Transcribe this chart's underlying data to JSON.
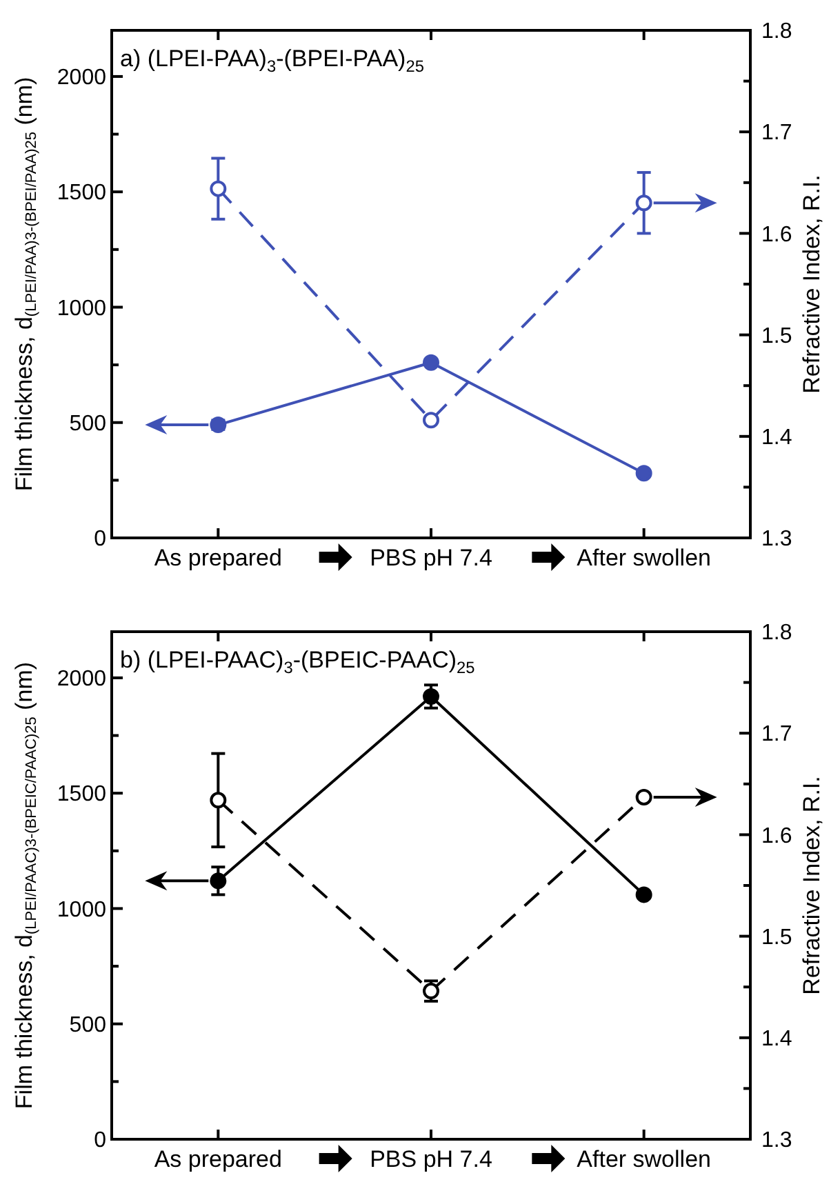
{
  "chart_data": [
    {
      "type": "line",
      "title": "a) (LPEI-PAA)$_{3}$-(BPEI-PAA)$_{25}$",
      "ylabel": "Film thickness, d$_{(LPEI/PAA)3-(BPEI/PAA)25}$ (nm)",
      "y2label": "Refractive Index, R.I.",
      "categories": [
        "As prepared",
        "PBS pH 7.4",
        "After swollen"
      ],
      "series": [
        {
          "color": "#3f51b5",
          "values": [
            490,
            760,
            280
          ],
          "errors": [
            20,
            null,
            null
          ],
          "line_style": "solid"
        },
        {
          "color": "#3f51b5",
          "values": [
            1.644,
            1.416,
            1.63
          ],
          "errors": [
            0.03,
            null,
            0.03
          ],
          "line_style": "dashed",
          "axis": "y2"
        }
      ],
      "ylim": [
        0,
        2200
      ],
      "yticks": [
        0,
        {
          "value": 250,
          "label": null
        },
        500,
        {
          "value": 750,
          "label": null
        },
        1000,
        {
          "value": 1250,
          "label": null
        },
        1500,
        {
          "value": 1750,
          "label": null
        },
        2000
      ],
      "y2lim": [
        1.3,
        1.8
      ],
      "y2ticks": [
        1.3,
        {
          "value": 1.35,
          "label": null
        },
        1.4,
        {
          "value": 1.45,
          "label": null
        },
        1.5,
        {
          "value": 1.55,
          "label": null
        },
        1.6,
        {
          "value": 1.65,
          "label": null
        },
        1.7,
        {
          "value": 1.75,
          "label": null
        },
        1.8
      ],
      "marker": "circle",
      "grid": false
    },
    {
      "type": "line",
      "title": "b) (LPEI-PAAC)$_{3}$-(BPEIC-PAAC)$_{25}$",
      "ylabel": "Film thickness, d$_{(LPEI/PAAC)3-(BPEIC/PAAC)25}$ (nm)",
      "y2label": "Refractive Index, R.I.",
      "categories": [
        "As prepared",
        "PBS pH 7.4",
        "After swollen"
      ],
      "series": [
        {
          "color": "#000000",
          "values": [
            1120,
            1919,
            1060
          ],
          "errors": [
            60,
            50,
            null
          ],
          "line_style": "solid"
        },
        {
          "color": "#000000",
          "values": [
            1.634,
            1.446,
            1.637
          ],
          "errors": [
            0.046,
            0.01,
            null
          ],
          "line_style": "dashed",
          "axis": "y2"
        }
      ],
      "ylim": [
        0,
        2200
      ],
      "yticks": [
        0,
        {
          "value": 250,
          "label": null
        },
        500,
        {
          "value": 750,
          "label": null
        },
        1000,
        {
          "value": 1250,
          "label": null
        },
        1500,
        {
          "value": 1750,
          "label": null
        },
        2000
      ],
      "y2lim": [
        1.3,
        1.8
      ],
      "y2ticks": [
        1.3,
        {
          "value": 1.35,
          "label": null
        },
        1.4,
        {
          "value": 1.45,
          "label": null
        },
        1.5,
        {
          "value": 1.55,
          "label": null
        },
        1.6,
        {
          "value": 1.65,
          "label": null
        },
        1.7,
        {
          "value": 1.75,
          "label": null
        },
        1.8
      ],
      "marker": "circle",
      "grid": false
    }
  ]
}
